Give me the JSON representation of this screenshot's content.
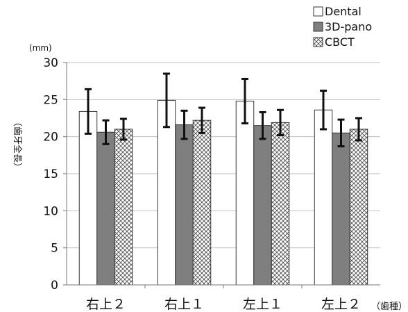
{
  "chart_data": {
    "type": "bar",
    "unit_label": "(mm)",
    "ylabel": "（歯牙全長）",
    "xlabel": "（歯種）",
    "ylim": [
      0,
      30
    ],
    "yticks": [
      0,
      5,
      10,
      15,
      20,
      25,
      30
    ],
    "grid": true,
    "legend_position": "top-right",
    "categories": [
      "右上２",
      "右上１",
      "左上１",
      "左上２"
    ],
    "series": [
      {
        "name": "Dental",
        "values": [
          23.4,
          24.9,
          24.8,
          23.6
        ],
        "errors": [
          3.0,
          3.6,
          3.0,
          2.6
        ],
        "color": "#ffffff",
        "pattern": "none"
      },
      {
        "name": "3D-pano",
        "values": [
          20.6,
          21.6,
          21.5,
          20.5
        ],
        "errors": [
          1.6,
          1.9,
          1.8,
          1.8
        ],
        "color": "#7f7f7f",
        "pattern": "solid"
      },
      {
        "name": "CBCT",
        "values": [
          21.0,
          22.2,
          21.9,
          21.0
        ],
        "errors": [
          1.4,
          1.7,
          1.7,
          1.5
        ],
        "color": "#ffffff",
        "pattern": "crosshatch"
      }
    ]
  }
}
